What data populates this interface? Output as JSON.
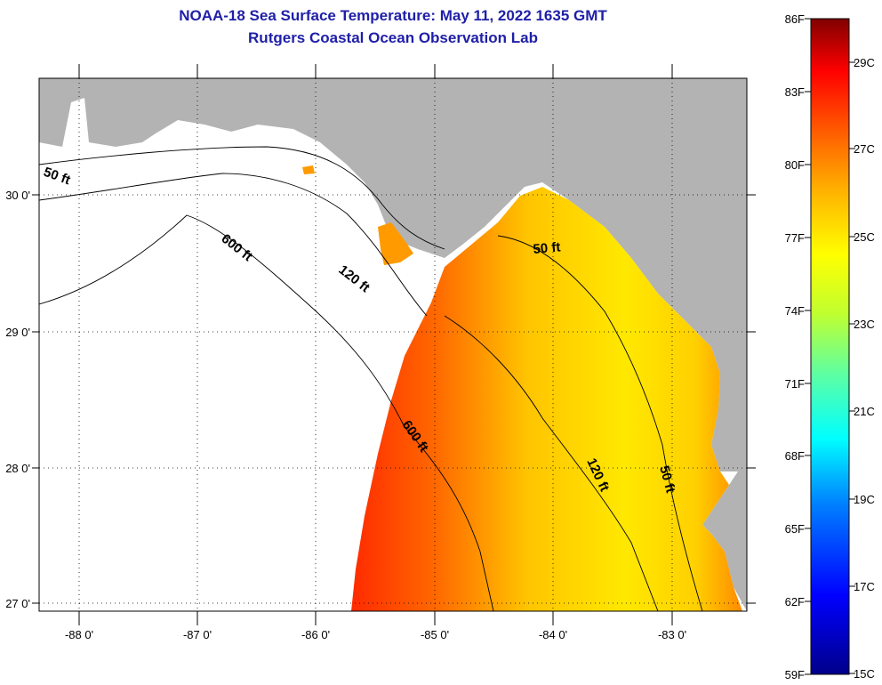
{
  "title_line1": "NOAA-18 Sea Surface Temperature:  May 11, 2022 1635 GMT",
  "title_line2": "Rutgers Coastal Ocean Observation Lab",
  "map": {
    "lon_ticks": [
      "-88 0'",
      "-87 0'",
      "-86 0'",
      "-85 0'",
      "-84 0'",
      "-83 0'"
    ],
    "lat_ticks": [
      "30 0'",
      "29 0'",
      "28 0'",
      "27 0'"
    ],
    "depth_labels": [
      "50 ft",
      "600 ft",
      "120 ft",
      "50 ft",
      "600 ft",
      "120 ft",
      "50 ft"
    ]
  },
  "colorbar": {
    "f_labels": [
      "86F",
      "83F",
      "80F",
      "77F",
      "74F",
      "71F",
      "68F",
      "65F",
      "62F",
      "59F"
    ],
    "c_labels": [
      "29C",
      "27C",
      "25C",
      "23C",
      "21C",
      "19C",
      "17C",
      "15C"
    ]
  },
  "colors": {
    "land": "#b3b3b3",
    "no_data": "#ffffff",
    "title": "#1f1fa8"
  }
}
